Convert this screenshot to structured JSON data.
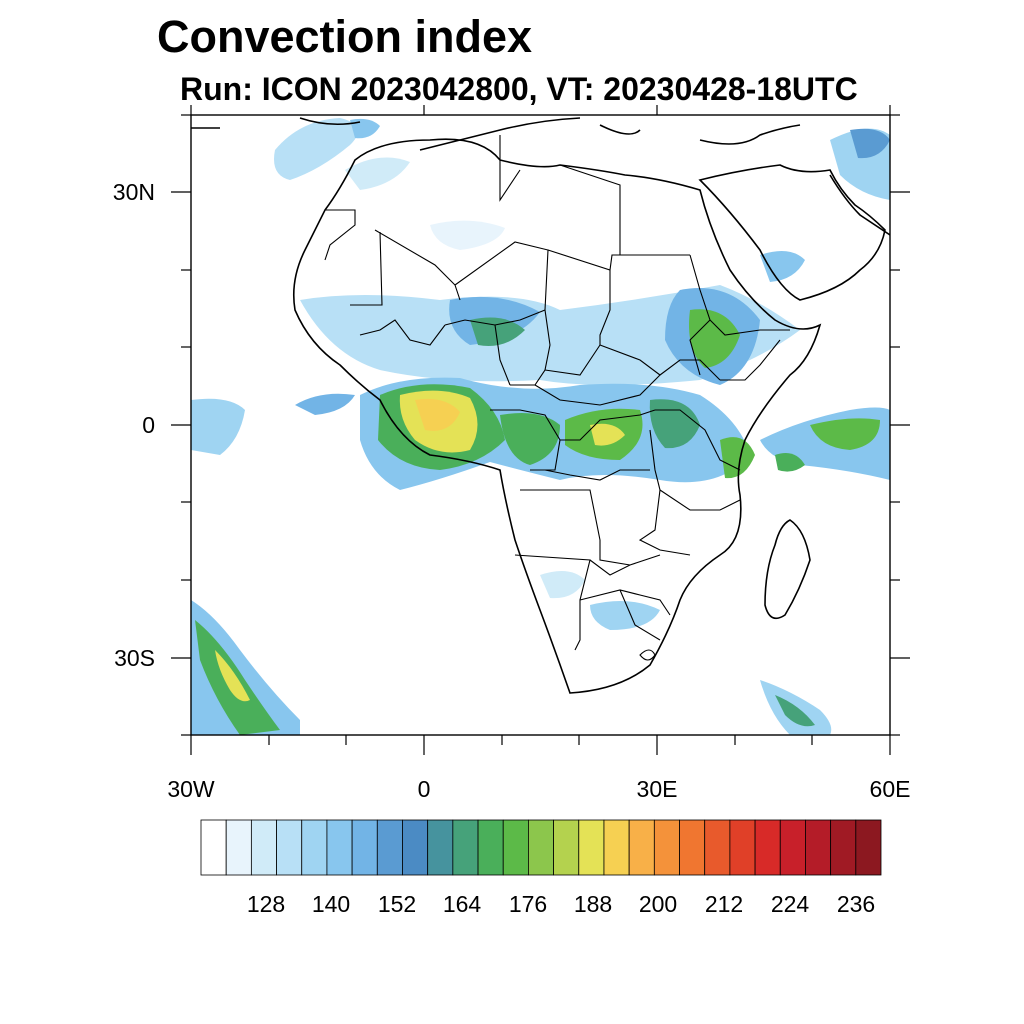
{
  "title": "Convection index",
  "subtitle": "Run: ICON 2023042800,  VT: 20230428-18UTC",
  "map": {
    "lon_range": [
      -30,
      60
    ],
    "lat_range": [
      -40,
      40
    ],
    "lat_ticks": [
      {
        "value": 30,
        "label": "30N"
      },
      {
        "value": 0,
        "label": "0"
      },
      {
        "value": -30,
        "label": "30S"
      }
    ],
    "lon_ticks": [
      {
        "value": -30,
        "label": "30W"
      },
      {
        "value": 0,
        "label": "0"
      },
      {
        "value": 30,
        "label": "30E"
      },
      {
        "value": 60,
        "label": "60E"
      }
    ]
  },
  "colorbar": {
    "colors": [
      "#ffffff",
      "#e8f4fc",
      "#d0ebf8",
      "#b8e0f6",
      "#9fd4f2",
      "#88c6ee",
      "#72b4e6",
      "#5a9bd2",
      "#4b8bc4",
      "#46939e",
      "#46a27a",
      "#4aaf5a",
      "#5cba48",
      "#8cc64c",
      "#b4d24e",
      "#e4e256",
      "#f6d052",
      "#f8b048",
      "#f4923a",
      "#f07630",
      "#e85a2c",
      "#e04028",
      "#d82a28",
      "#c8202a",
      "#b41c28",
      "#a01a24",
      "#8c1820"
    ],
    "tick_labels": [
      "128",
      "140",
      "152",
      "164",
      "176",
      "188",
      "200",
      "212",
      "224",
      "236"
    ]
  }
}
